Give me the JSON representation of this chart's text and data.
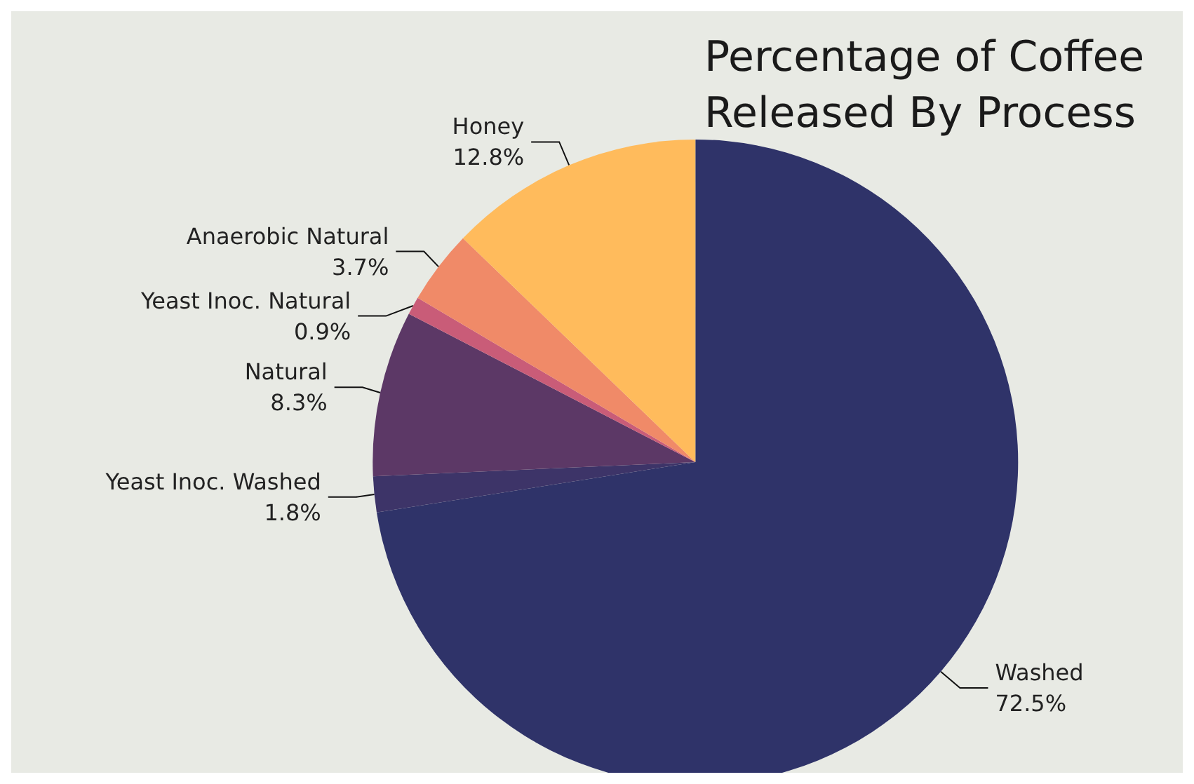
{
  "chart_data": {
    "type": "pie",
    "title": "Percentage of Coffee Released By Process",
    "categories": [
      "Washed",
      "Yeast Inoc. Washed",
      "Natural",
      "Yeast Inoc. Natural",
      "Anaerobic Natural",
      "Honey"
    ],
    "values": [
      72.5,
      1.8,
      8.3,
      0.9,
      3.7,
      12.8
    ],
    "value_labels": [
      "72.5%",
      "1.8%",
      "8.3%",
      "0.9%",
      "3.7%",
      "12.8%"
    ],
    "colors": [
      "#2f3369",
      "#3d3468",
      "#5c3866",
      "#c95c78",
      "#f08a68",
      "#ffbb5c"
    ],
    "legend": false
  }
}
